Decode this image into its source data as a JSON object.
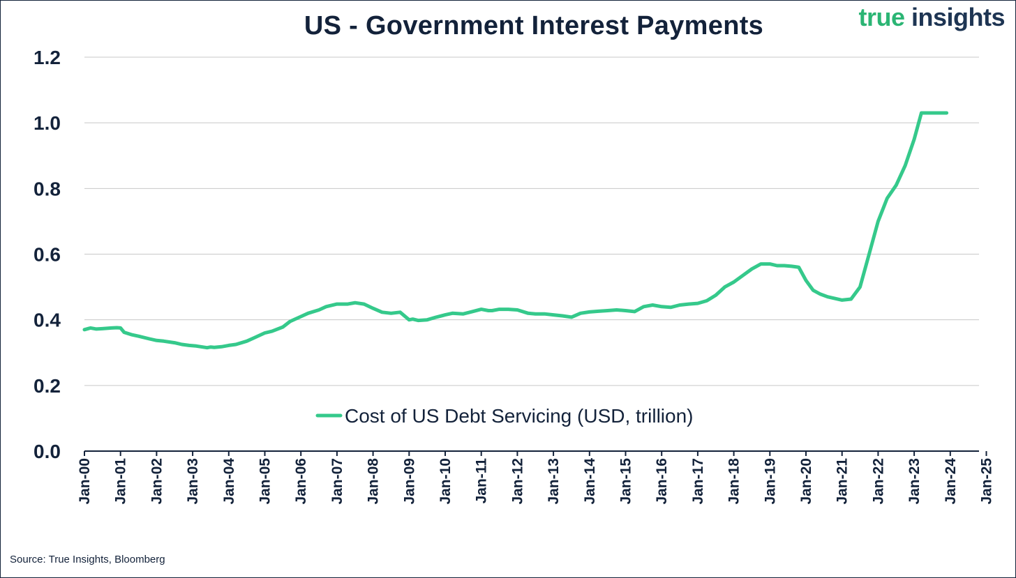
{
  "chart_data": {
    "type": "line",
    "title": "US - Government Interest Payments",
    "xlabel": "",
    "ylabel": "",
    "ylim": [
      0,
      1.2
    ],
    "yticks": [
      "0.0",
      "0.2",
      "0.4",
      "0.6",
      "0.8",
      "1.0",
      "1.2"
    ],
    "x_range": [
      2000.0,
      2026.0
    ],
    "xtick_labels": [
      "Jan-00",
      "Jan-01",
      "Jan-02",
      "Jan-03",
      "Jan-04",
      "Jan-05",
      "Jan-06",
      "Jan-07",
      "Jan-08",
      "Jan-09",
      "Jan-10",
      "Jan-11",
      "Jan-12",
      "Jan-13",
      "Jan-14",
      "Jan-15",
      "Jan-16",
      "Jan-17",
      "Jan-18",
      "Jan-19",
      "Jan-20",
      "Jan-21",
      "Jan-22",
      "Jan-23",
      "Jan-24",
      "Jan-25"
    ],
    "grid": true,
    "legend_position": "lower-center",
    "series": [
      {
        "name": "Cost of US Debt Servicing (USD, trillion)",
        "color": "#35c98b",
        "x": [
          2000.0,
          2000.17,
          2000.33,
          2000.5,
          2000.75,
          2000.9,
          2001.0,
          2001.1,
          2001.3,
          2001.5,
          2001.8,
          2002.0,
          2002.2,
          2002.5,
          2002.7,
          2002.9,
          2003.1,
          2003.4,
          2003.5,
          2003.6,
          2003.8,
          2004.0,
          2004.2,
          2004.5,
          2004.7,
          2005.0,
          2005.2,
          2005.5,
          2005.7,
          2006.0,
          2006.2,
          2006.5,
          2006.7,
          2007.0,
          2007.3,
          2007.5,
          2007.75,
          2008.0,
          2008.25,
          2008.5,
          2008.75,
          2009.0,
          2009.1,
          2009.25,
          2009.5,
          2009.75,
          2010.0,
          2010.2,
          2010.5,
          2010.75,
          2011.0,
          2011.2,
          2011.3,
          2011.5,
          2011.75,
          2012.0,
          2012.3,
          2012.5,
          2012.75,
          2013.0,
          2013.25,
          2013.5,
          2013.75,
          2014.0,
          2014.25,
          2014.5,
          2014.75,
          2015.0,
          2015.25,
          2015.5,
          2015.75,
          2016.0,
          2016.25,
          2016.5,
          2016.75,
          2017.0,
          2017.25,
          2017.5,
          2017.75,
          2018.0,
          2018.25,
          2018.5,
          2018.75,
          2019.0,
          2019.2,
          2019.4,
          2019.6,
          2019.8,
          2020.0,
          2020.2,
          2020.4,
          2020.6,
          2020.8,
          2021.0,
          2021.25,
          2021.5,
          2021.75,
          2022.0,
          2022.25,
          2022.5,
          2022.75,
          2023.0,
          2023.2,
          2023.4,
          2023.6,
          2023.8,
          2023.9
        ],
        "values": [
          0.37,
          0.375,
          0.372,
          0.373,
          0.375,
          0.376,
          0.375,
          0.362,
          0.355,
          0.35,
          0.342,
          0.337,
          0.335,
          0.33,
          0.325,
          0.322,
          0.32,
          0.315,
          0.317,
          0.316,
          0.318,
          0.322,
          0.325,
          0.335,
          0.345,
          0.36,
          0.365,
          0.378,
          0.395,
          0.41,
          0.42,
          0.43,
          0.44,
          0.448,
          0.448,
          0.452,
          0.448,
          0.435,
          0.423,
          0.42,
          0.423,
          0.4,
          0.402,
          0.398,
          0.4,
          0.408,
          0.415,
          0.42,
          0.418,
          0.425,
          0.432,
          0.428,
          0.428,
          0.432,
          0.432,
          0.43,
          0.42,
          0.418,
          0.418,
          0.415,
          0.412,
          0.408,
          0.42,
          0.424,
          0.426,
          0.428,
          0.43,
          0.428,
          0.425,
          0.44,
          0.445,
          0.44,
          0.438,
          0.445,
          0.448,
          0.45,
          0.458,
          0.475,
          0.5,
          0.515,
          0.535,
          0.555,
          0.57,
          0.57,
          0.565,
          0.565,
          0.563,
          0.56,
          0.52,
          0.49,
          0.478,
          0.47,
          0.465,
          0.46,
          0.463,
          0.5,
          0.6,
          0.7,
          0.77,
          0.81,
          0.87,
          0.95,
          1.03,
          1.03,
          1.03,
          1.03,
          1.03
        ]
      }
    ]
  },
  "logo": {
    "word1": "true",
    "word2": "insights"
  },
  "source": "Source: True Insights, Bloomberg"
}
